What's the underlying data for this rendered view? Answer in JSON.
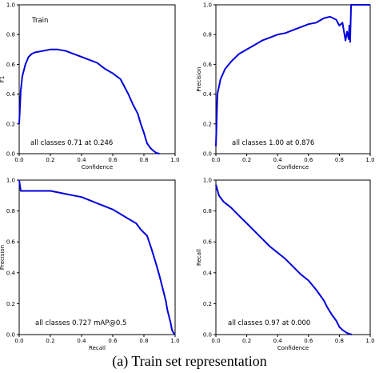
{
  "caption": "(a) Train set representation",
  "chart_data": [
    {
      "type": "line",
      "title": "",
      "xlabel": "Confidence",
      "ylabel": "F1",
      "xlim": [
        0,
        1
      ],
      "ylim": [
        0,
        1
      ],
      "xticks": [
        "0.0",
        "0.2",
        "0.4",
        "0.6",
        "0.8",
        "1.0"
      ],
      "yticks": [
        "0.0",
        "0.2",
        "0.4",
        "0.6",
        "0.8",
        "1.0"
      ],
      "legend": "Train",
      "annotation": "all classes 0.71 at 0.246",
      "series": [
        {
          "x": [
            0,
            0.01,
            0.02,
            0.04,
            0.06,
            0.08,
            0.1,
            0.15,
            0.2,
            0.246,
            0.3,
            0.35,
            0.4,
            0.45,
            0.5,
            0.55,
            0.6,
            0.65,
            0.7,
            0.73,
            0.76,
            0.78,
            0.8,
            0.82,
            0.84,
            0.86,
            0.88,
            0.9
          ],
          "y": [
            0.2,
            0.42,
            0.52,
            0.6,
            0.65,
            0.67,
            0.68,
            0.69,
            0.7,
            0.7,
            0.69,
            0.67,
            0.65,
            0.63,
            0.61,
            0.57,
            0.54,
            0.5,
            0.4,
            0.33,
            0.27,
            0.2,
            0.14,
            0.07,
            0.04,
            0.02,
            0.005,
            0.0
          ]
        }
      ]
    },
    {
      "type": "line",
      "title": "",
      "xlabel": "Confidence",
      "ylabel": "Precision",
      "xlim": [
        0,
        1
      ],
      "ylim": [
        0,
        1
      ],
      "xticks": [
        "0.0",
        "0.2",
        "0.4",
        "0.6",
        "0.8",
        "1.0"
      ],
      "yticks": [
        "0.0",
        "0.2",
        "0.4",
        "0.6",
        "0.8",
        "1.0"
      ],
      "annotation": "all classes 1.00 at 0.876",
      "series": [
        {
          "x": [
            0,
            0.01,
            0.03,
            0.06,
            0.1,
            0.15,
            0.2,
            0.25,
            0.3,
            0.35,
            0.4,
            0.45,
            0.5,
            0.55,
            0.6,
            0.65,
            0.7,
            0.74,
            0.78,
            0.8,
            0.82,
            0.84,
            0.85,
            0.86,
            0.865,
            0.87,
            0.876,
            0.88,
            0.9,
            0.95,
            1.0
          ],
          "y": [
            0.05,
            0.4,
            0.5,
            0.57,
            0.62,
            0.67,
            0.7,
            0.73,
            0.76,
            0.78,
            0.8,
            0.81,
            0.83,
            0.85,
            0.87,
            0.88,
            0.91,
            0.92,
            0.9,
            0.86,
            0.88,
            0.76,
            0.82,
            0.77,
            0.86,
            0.75,
            1.0,
            1.0,
            1.0,
            1.0,
            1.0
          ]
        }
      ]
    },
    {
      "type": "line",
      "title": "",
      "xlabel": "Recall",
      "ylabel": "Precision",
      "xlim": [
        0,
        1
      ],
      "ylim": [
        0,
        1
      ],
      "xticks": [
        "0.0",
        "0.2",
        "0.4",
        "0.6",
        "0.8",
        "1.0"
      ],
      "yticks": [
        "0.0",
        "0.2",
        "0.4",
        "0.6",
        "0.8",
        "1.0"
      ],
      "annotation": "all classes 0.727 mAP@0.5",
      "series": [
        {
          "x": [
            0,
            0.01,
            0.05,
            0.1,
            0.15,
            0.2,
            0.25,
            0.3,
            0.35,
            0.4,
            0.45,
            0.5,
            0.55,
            0.6,
            0.65,
            0.7,
            0.75,
            0.78,
            0.82,
            0.85,
            0.88,
            0.9,
            0.92,
            0.94,
            0.95,
            0.97,
            0.98,
            0.99,
            1.0
          ],
          "y": [
            1.0,
            0.93,
            0.93,
            0.93,
            0.93,
            0.93,
            0.92,
            0.91,
            0.9,
            0.89,
            0.87,
            0.85,
            0.83,
            0.81,
            0.78,
            0.75,
            0.72,
            0.68,
            0.64,
            0.55,
            0.45,
            0.38,
            0.3,
            0.22,
            0.16,
            0.08,
            0.03,
            0.01,
            0.0
          ]
        }
      ]
    },
    {
      "type": "line",
      "title": "",
      "xlabel": "Confidence",
      "ylabel": "Recall",
      "xlim": [
        0,
        1
      ],
      "ylim": [
        0,
        1
      ],
      "xticks": [
        "0.0",
        "0.2",
        "0.4",
        "0.6",
        "0.8",
        "1.0"
      ],
      "yticks": [
        "0.0",
        "0.2",
        "0.4",
        "0.6",
        "0.8",
        "1.0"
      ],
      "annotation": "all classes 0.97 at 0.000",
      "series": [
        {
          "x": [
            0,
            0.02,
            0.05,
            0.1,
            0.15,
            0.2,
            0.25,
            0.3,
            0.35,
            0.4,
            0.45,
            0.5,
            0.55,
            0.6,
            0.65,
            0.7,
            0.72,
            0.75,
            0.78,
            0.8,
            0.82,
            0.85,
            0.88
          ],
          "y": [
            0.97,
            0.9,
            0.86,
            0.82,
            0.77,
            0.72,
            0.67,
            0.62,
            0.57,
            0.53,
            0.49,
            0.44,
            0.39,
            0.35,
            0.29,
            0.22,
            0.18,
            0.13,
            0.09,
            0.05,
            0.03,
            0.01,
            0.0
          ]
        }
      ]
    }
  ]
}
